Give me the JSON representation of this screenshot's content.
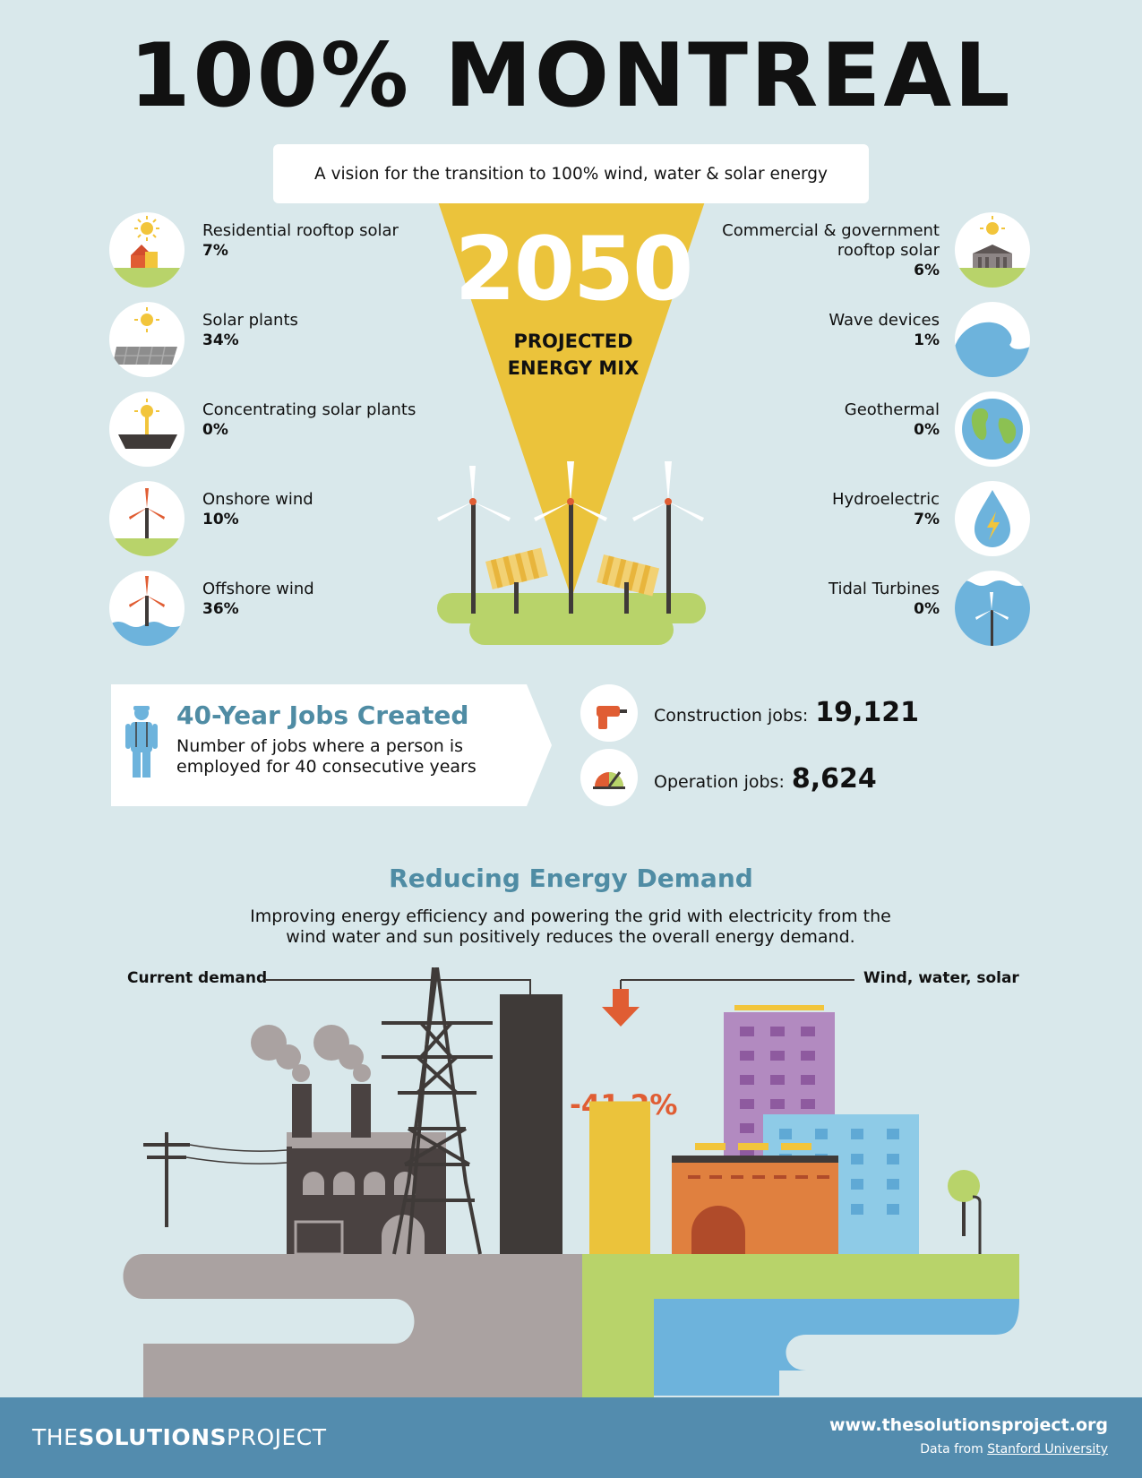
{
  "title": "100% MONTREAL",
  "subtitle": "A vision for the transition to 100% wind, water & solar energy",
  "center": {
    "year": "2050",
    "label_line1": "PROJECTED",
    "label_line2": "ENERGY MIX"
  },
  "sources_left": [
    {
      "label": "Residential rooftop solar",
      "pct": "7%",
      "icon": "residential-solar-icon"
    },
    {
      "label": "Solar plants",
      "pct": "34%",
      "icon": "solar-plant-icon"
    },
    {
      "label": "Concentrating solar plants",
      "pct": "0%",
      "icon": "concentrating-solar-icon"
    },
    {
      "label": "Onshore wind",
      "pct": "10%",
      "icon": "onshore-wind-icon"
    },
    {
      "label": "Offshore wind",
      "pct": "36%",
      "icon": "offshore-wind-icon"
    }
  ],
  "sources_right": [
    {
      "label": "Commercial & government rooftop solar",
      "pct": "6%",
      "icon": "commercial-solar-icon"
    },
    {
      "label": "Wave devices",
      "pct": "1%",
      "icon": "wave-icon"
    },
    {
      "label": "Geothermal",
      "pct": "0%",
      "icon": "earth-icon"
    },
    {
      "label": "Hydroelectric",
      "pct": "7%",
      "icon": "water-drop-icon"
    },
    {
      "label": "Tidal Turbines",
      "pct": "0%",
      "icon": "tidal-turbine-icon"
    }
  ],
  "jobs": {
    "title": "40-Year Jobs Created",
    "description": "Number of jobs where a person is employed for 40 consecutive years",
    "construction_label": "Construction jobs:",
    "construction_value": "19,121",
    "operation_label": "Operation jobs:",
    "operation_value": "8,624"
  },
  "demand": {
    "title": "Reducing Energy Demand",
    "description": "Improving energy efficiency and powering the grid with electricity from the wind water and sun positively reduces the overall energy demand.",
    "current_label": "Current demand",
    "wws_label": "Wind, water, solar",
    "reduction": "-41.2%"
  },
  "footer": {
    "logo_prefix": "THE",
    "logo_bold": "SOLUTIONS",
    "logo_suffix": "PROJECT",
    "url": "www.thesolutionsproject.org",
    "credit_prefix": "Data from",
    "credit_link": "Stanford University"
  },
  "colors": {
    "background": "#d9e8eb",
    "accent_blue": "#4f8ca4",
    "sun_yellow": "#ebc33b",
    "reduction_orange": "#e05d33",
    "footer": "#538cae"
  }
}
